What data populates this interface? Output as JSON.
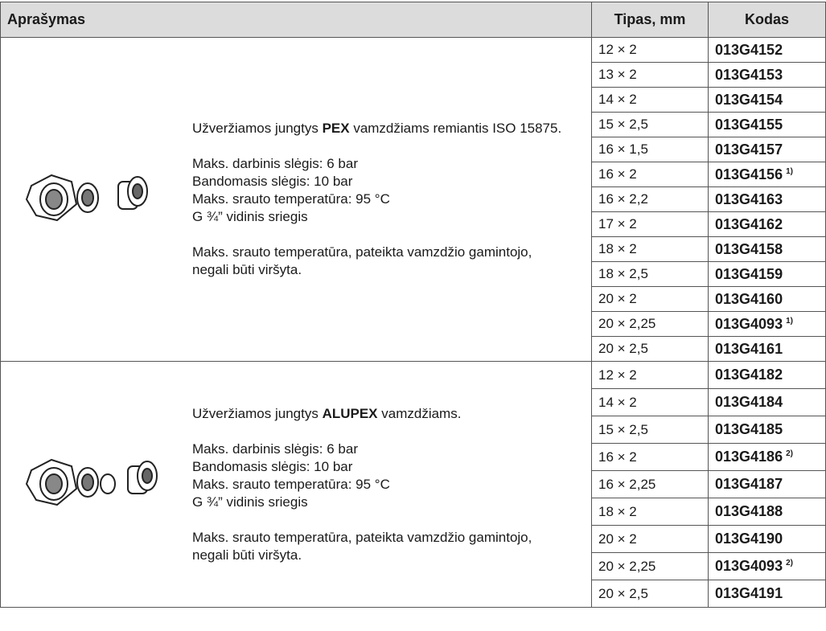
{
  "table": {
    "header": [
      "Aprašymas",
      "Tipas, mm",
      "Kodas"
    ],
    "groups": [
      {
        "intro": {
          "before": "Užveržiamos jungtys ",
          "bold": "PEX",
          "after": " vamzdžiams remiantis ISO 15875."
        },
        "specs": [
          "Maks. darbinis slėgis: 6 bar",
          "Bandomasis slėgis: 10 bar",
          "Maks. srauto temperatūra: 95 °C",
          "G ¾” vidinis sriegis"
        ],
        "note": "Maks. srauto temperatūra, pateikta vamzdžio gamintojo, negali būti viršyta.",
        "rows": [
          [
            "12 × 2",
            "013G4152"
          ],
          [
            "13 × 2",
            "013G4153"
          ],
          [
            "14 × 2",
            "013G4154"
          ],
          [
            "15 × 2,5",
            "013G4155"
          ],
          [
            "16 × 1,5",
            "013G4157"
          ],
          [
            "16 × 2",
            {
              "code": "013G4156",
              "note": "1)"
            }
          ],
          [
            "16 × 2,2",
            "013G4163"
          ],
          [
            "17 × 2",
            "013G4162"
          ],
          [
            "18 × 2",
            "013G4158"
          ],
          [
            "18 × 2,5",
            "013G4159"
          ],
          [
            "20 × 2",
            "013G4160"
          ],
          [
            "20 × 2,25",
            {
              "code": "013G4093",
              "note": "1)"
            }
          ],
          [
            "20 × 2,5",
            "013G4161"
          ]
        ]
      },
      {
        "intro": {
          "before": "Užveržiamos jungtys ",
          "bold": "ALUPEX",
          "after": " vamzdžiams."
        },
        "specs": [
          "Maks. darbinis slėgis: 6 bar",
          "Bandomasis slėgis: 10 bar",
          "Maks. srauto temperatūra: 95 °C",
          "G ¾” vidinis sriegis"
        ],
        "note": "Maks. srauto temperatūra, pateikta vamzdžio gamintojo, negali būti viršyta.",
        "rows": [
          [
            "12 × 2",
            "013G4182"
          ],
          [
            "14 × 2",
            "013G4184"
          ],
          [
            "15 × 2,5",
            "013G4185"
          ],
          [
            "16 × 2",
            {
              "code": "013G4186",
              "note": "2)"
            }
          ],
          [
            "16 × 2,25",
            "013G4187"
          ],
          [
            "18 × 2",
            "013G4188"
          ],
          [
            "20 × 2",
            "013G4190"
          ],
          [
            "20 × 2,25",
            {
              "code": "013G4093",
              "note": "2)"
            }
          ],
          [
            "20 × 2,5",
            "013G4191"
          ]
        ]
      }
    ]
  }
}
